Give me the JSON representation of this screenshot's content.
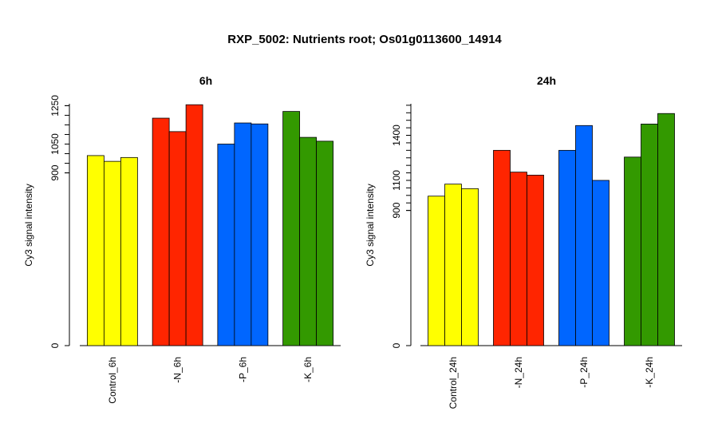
{
  "title": "RXP_5002: Nutrients root; Os01g0113600_14914",
  "chart_data": [
    {
      "type": "bar",
      "title": "6h",
      "ylabel": "Cy3 signal intensity",
      "xlabel": "",
      "categories": [
        "Control_6h",
        "-N_6h",
        "-P_6h",
        "-K_6h"
      ],
      "replicate_values": [
        [
          990,
          960,
          980
        ],
        [
          1185,
          1115,
          1255
        ],
        [
          1050,
          1160,
          1155
        ],
        [
          1220,
          1085,
          1065
        ]
      ],
      "colors": [
        "#ffff00",
        "#ff2500",
        "#0066ff",
        "#339900"
      ],
      "yticks": [
        0,
        900,
        1050,
        1250
      ],
      "ylim": [
        0,
        1260
      ],
      "grid": false,
      "legend": "none"
    },
    {
      "type": "bar",
      "title": "24h",
      "ylabel": "Cy3 signal intensity",
      "xlabel": "",
      "categories": [
        "Control_24h",
        "-N_24h",
        "-P_24h",
        "-K_24h"
      ],
      "replicate_values": [
        [
          995,
          1075,
          1045
        ],
        [
          1300,
          1155,
          1135
        ],
        [
          1300,
          1465,
          1100
        ],
        [
          1255,
          1475,
          1545
        ]
      ],
      "colors": [
        "#ffff00",
        "#ff2500",
        "#0066ff",
        "#339900"
      ],
      "yticks": [
        0,
        900,
        1100,
        1400
      ],
      "ylim": [
        0,
        1610
      ],
      "grid": false,
      "legend": "none"
    }
  ]
}
